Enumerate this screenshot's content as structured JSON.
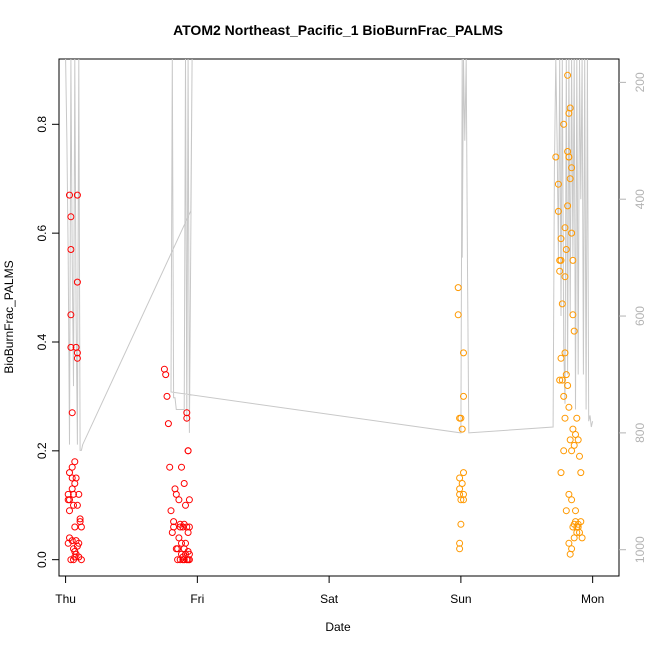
{
  "chart_data": {
    "type": "scatter",
    "title": "ATOM2 Northeast_Pacific_1 BioBurnFrac_PALMS",
    "xlabel": "Date",
    "ylabel": "BioBurnFrac_PALMS",
    "x_ticks": [
      "Thu",
      "Fri",
      "Sat",
      "Sun",
      "Mon"
    ],
    "xlim": [
      -0.05,
      4.2
    ],
    "ylim": [
      -0.03,
      0.92
    ],
    "y_ticks": [
      0.0,
      0.2,
      0.4,
      0.6,
      0.8
    ],
    "y2_ticks": [
      200,
      400,
      600,
      800,
      1000
    ],
    "y2lim": [
      160,
      1045
    ],
    "grid": false,
    "series": [
      {
        "color": "#ff0000",
        "points": [
          [
            0.02,
            0.03
          ],
          [
            0.03,
            0.09
          ],
          [
            0.02,
            0.11
          ],
          [
            0.03,
            0.16
          ],
          [
            0.04,
            0.63
          ],
          [
            0.04,
            0.57
          ],
          [
            0.03,
            0.67
          ],
          [
            0.04,
            0.45
          ],
          [
            0.04,
            0.39
          ],
          [
            0.05,
            0.27
          ],
          [
            0.05,
            0.17
          ],
          [
            0.05,
            0.15
          ],
          [
            0.06,
            0.12
          ],
          [
            0.06,
            0.02
          ],
          [
            0.06,
            0.0
          ],
          [
            0.07,
            0.18
          ],
          [
            0.07,
            0.14
          ],
          [
            0.07,
            0.06
          ],
          [
            0.08,
            0.39
          ],
          [
            0.08,
            0.01
          ],
          [
            0.09,
            0.67
          ],
          [
            0.09,
            0.51
          ],
          [
            0.09,
            0.38
          ],
          [
            0.09,
            0.37
          ],
          [
            0.1,
            0.03
          ],
          [
            0.1,
            0.12
          ],
          [
            0.11,
            0.07
          ],
          [
            0.12,
            0.06
          ],
          [
            0.12,
            0.0
          ],
          [
            0.02,
            0.12
          ],
          [
            0.03,
            0.11
          ],
          [
            0.04,
            0.0
          ],
          [
            0.05,
            0.035
          ],
          [
            0.06,
            0.1
          ],
          [
            0.07,
            0.005
          ],
          [
            0.08,
            0.035
          ],
          [
            0.08,
            0.15
          ],
          [
            0.09,
            0.1
          ],
          [
            0.1,
            0.005
          ],
          [
            0.11,
            0.075
          ],
          [
            0.05,
            0.13
          ],
          [
            0.03,
            0.04
          ],
          [
            0.07,
            0.015
          ],
          [
            0.09,
            0.025
          ]
        ]
      },
      {
        "color": "#ff0000",
        "points": [
          [
            0.75,
            0.35
          ],
          [
            0.76,
            0.34
          ],
          [
            0.77,
            0.3
          ],
          [
            0.78,
            0.25
          ],
          [
            0.79,
            0.17
          ],
          [
            0.8,
            0.09
          ],
          [
            0.81,
            0.05
          ],
          [
            0.82,
            0.07
          ],
          [
            0.83,
            0.13
          ],
          [
            0.84,
            0.12
          ],
          [
            0.85,
            0.02
          ],
          [
            0.85,
            0.0
          ],
          [
            0.86,
            0.11
          ],
          [
            0.87,
            0.06
          ],
          [
            0.88,
            0.17
          ],
          [
            0.88,
            0.03
          ],
          [
            0.89,
            0.06
          ],
          [
            0.89,
            0.0
          ],
          [
            0.9,
            0.14
          ],
          [
            0.9,
            0.02
          ],
          [
            0.91,
            0.1
          ],
          [
            0.91,
            0.01
          ],
          [
            0.92,
            0.27
          ],
          [
            0.92,
            0.26
          ],
          [
            0.93,
            0.2
          ],
          [
            0.93,
            0.2
          ],
          [
            0.93,
            0.05
          ],
          [
            0.93,
            0.0
          ],
          [
            0.94,
            0.11
          ],
          [
            0.94,
            0.06
          ],
          [
            0.94,
            0.01
          ],
          [
            0.94,
            0.0
          ],
          [
            0.87,
            0.0
          ],
          [
            0.88,
            0.01
          ],
          [
            0.89,
            0.005
          ],
          [
            0.9,
            0.0
          ],
          [
            0.91,
            0.03
          ],
          [
            0.92,
            0.0
          ],
          [
            0.93,
            0.015
          ],
          [
            0.92,
            0.06
          ],
          [
            0.86,
            0.04
          ],
          [
            0.82,
            0.06
          ],
          [
            0.84,
            0.02
          ],
          [
            0.87,
            0.065
          ],
          [
            0.9,
            0.065
          ]
        ]
      },
      {
        "color": "#ff9900",
        "points": [
          [
            2.98,
            0.5
          ],
          [
            2.98,
            0.45
          ],
          [
            2.99,
            0.26
          ],
          [
            2.99,
            0.15
          ],
          [
            2.99,
            0.13
          ],
          [
            2.99,
            0.12
          ],
          [
            3.0,
            0.11
          ],
          [
            3.0,
            0.065
          ],
          [
            2.99,
            0.03
          ],
          [
            2.99,
            0.02
          ],
          [
            3.0,
            0.26
          ],
          [
            3.01,
            0.24
          ],
          [
            3.02,
            0.38
          ],
          [
            3.02,
            0.3
          ],
          [
            3.02,
            0.16
          ],
          [
            3.02,
            0.12
          ],
          [
            3.01,
            0.14
          ],
          [
            3.02,
            0.11
          ]
        ]
      },
      {
        "color": "#ff9900",
        "points": [
          [
            3.72,
            0.74
          ],
          [
            3.74,
            0.69
          ],
          [
            3.74,
            0.64
          ],
          [
            3.75,
            0.55
          ],
          [
            3.75,
            0.53
          ],
          [
            3.76,
            0.59
          ],
          [
            3.76,
            0.55
          ],
          [
            3.77,
            0.47
          ],
          [
            3.78,
            0.8
          ],
          [
            3.79,
            0.61
          ],
          [
            3.79,
            0.52
          ],
          [
            3.8,
            0.57
          ],
          [
            3.81,
            0.75
          ],
          [
            3.81,
            0.65
          ],
          [
            3.82,
            0.82
          ],
          [
            3.82,
            0.74
          ],
          [
            3.83,
            0.83
          ],
          [
            3.83,
            0.7
          ],
          [
            3.84,
            0.6
          ],
          [
            3.85,
            0.55
          ],
          [
            3.85,
            0.45
          ],
          [
            3.86,
            0.42
          ],
          [
            3.76,
            0.37
          ],
          [
            3.77,
            0.33
          ],
          [
            3.78,
            0.3
          ],
          [
            3.79,
            0.26
          ],
          [
            3.8,
            0.34
          ],
          [
            3.81,
            0.32
          ],
          [
            3.82,
            0.28
          ],
          [
            3.83,
            0.22
          ],
          [
            3.84,
            0.2
          ],
          [
            3.85,
            0.24
          ],
          [
            3.86,
            0.21
          ],
          [
            3.87,
            0.23
          ],
          [
            3.88,
            0.26
          ],
          [
            3.89,
            0.22
          ],
          [
            3.9,
            0.19
          ],
          [
            3.91,
            0.16
          ],
          [
            3.76,
            0.16
          ],
          [
            3.78,
            0.2
          ],
          [
            3.8,
            0.09
          ],
          [
            3.82,
            0.12
          ],
          [
            3.84,
            0.11
          ],
          [
            3.85,
            0.06
          ],
          [
            3.86,
            0.065
          ],
          [
            3.87,
            0.07
          ],
          [
            3.88,
            0.06
          ],
          [
            3.89,
            0.065
          ],
          [
            3.9,
            0.05
          ],
          [
            3.91,
            0.07
          ],
          [
            3.92,
            0.04
          ],
          [
            3.82,
            0.03
          ],
          [
            3.84,
            0.02
          ],
          [
            3.83,
            0.01
          ],
          [
            3.81,
            0.89
          ],
          [
            3.82,
            0.74
          ],
          [
            3.84,
            0.72
          ],
          [
            3.75,
            0.33
          ],
          [
            3.79,
            0.38
          ],
          [
            3.86,
            0.04
          ],
          [
            3.87,
            0.09
          ],
          [
            3.88,
            0.05
          ],
          [
            3.89,
            0.06
          ]
        ]
      }
    ],
    "secondary_series": {
      "color": "#c8c8c8",
      "axis": "right",
      "points": [
        [
          0.0,
          130
        ],
        [
          0.01,
          300
        ],
        [
          0.02,
          500
        ],
        [
          0.03,
          820
        ],
        [
          0.04,
          130
        ],
        [
          0.05,
          500
        ],
        [
          0.06,
          720
        ],
        [
          0.07,
          130
        ],
        [
          0.08,
          600
        ],
        [
          0.09,
          820
        ],
        [
          0.1,
          130
        ],
        [
          0.11,
          830
        ],
        [
          0.12,
          830
        ],
        [
          0.13,
          820
        ],
        [
          0.95,
          420
        ],
        [
          0.96,
          130
        ],
        [
          0.94,
          800
        ],
        [
          0.93,
          130
        ],
        [
          0.92,
          780
        ],
        [
          0.91,
          130
        ],
        [
          0.9,
          770
        ],
        [
          0.9,
          760
        ],
        [
          0.84,
          760
        ],
        [
          0.83,
          740
        ],
        [
          0.82,
          740
        ],
        [
          0.81,
          130
        ],
        [
          0.8,
          730
        ],
        [
          3.0,
          800
        ],
        [
          3.01,
          130
        ],
        [
          3.01,
          500
        ],
        [
          3.02,
          130
        ],
        [
          3.03,
          300
        ],
        [
          3.04,
          130
        ],
        [
          3.05,
          520
        ],
        [
          3.06,
          800
        ],
        [
          3.7,
          790
        ],
        [
          3.71,
          350
        ],
        [
          3.72,
          130
        ],
        [
          3.73,
          300
        ],
        [
          3.74,
          500
        ],
        [
          3.75,
          130
        ],
        [
          3.76,
          600
        ],
        [
          3.77,
          130
        ],
        [
          3.78,
          650
        ],
        [
          3.79,
          750
        ],
        [
          3.8,
          130
        ],
        [
          3.81,
          700
        ],
        [
          3.82,
          130
        ],
        [
          3.83,
          600
        ],
        [
          3.84,
          130
        ],
        [
          3.85,
          500
        ],
        [
          3.86,
          130
        ],
        [
          3.87,
          760
        ],
        [
          3.88,
          130
        ],
        [
          3.89,
          700
        ],
        [
          3.9,
          130
        ],
        [
          3.91,
          400
        ],
        [
          3.92,
          130
        ],
        [
          3.93,
          700
        ],
        [
          3.94,
          130
        ],
        [
          3.95,
          760
        ],
        [
          3.96,
          130
        ],
        [
          3.97,
          780
        ],
        [
          3.98,
          770
        ],
        [
          3.99,
          790
        ],
        [
          4.0,
          780
        ]
      ]
    }
  }
}
